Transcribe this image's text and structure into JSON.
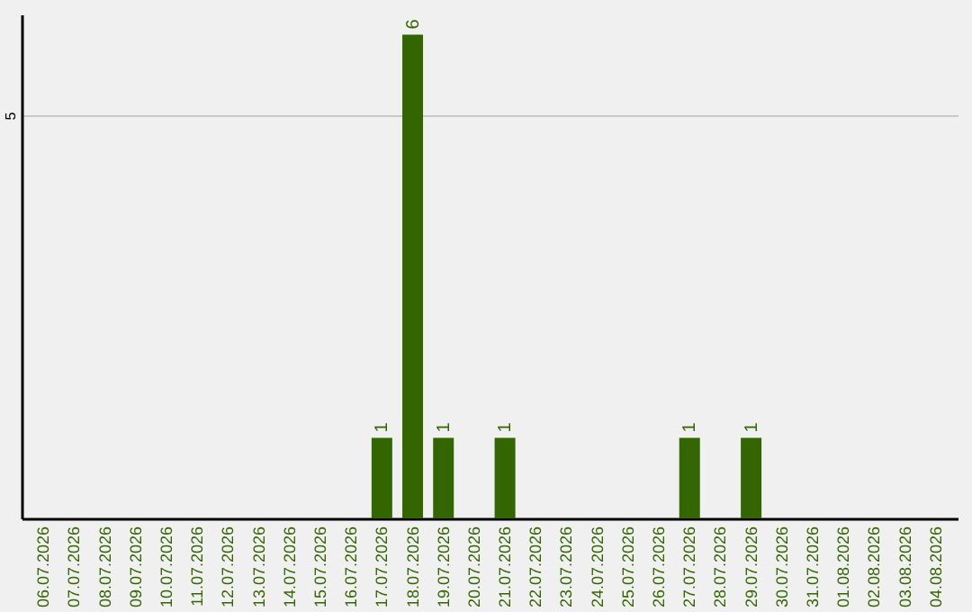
{
  "chart_data": {
    "type": "bar",
    "categories": [
      "06.07.2026",
      "07.07.2026",
      "08.07.2026",
      "09.07.2026",
      "10.07.2026",
      "11.07.2026",
      "12.07.2026",
      "13.07.2026",
      "14.07.2026",
      "15.07.2026",
      "16.07.2026",
      "17.07.2026",
      "18.07.2026",
      "19.07.2026",
      "20.07.2026",
      "21.07.2026",
      "22.07.2026",
      "23.07.2026",
      "24.07.2026",
      "25.07.2026",
      "26.07.2026",
      "27.07.2026",
      "28.07.2026",
      "29.07.2026",
      "30.07.2026",
      "31.07.2026",
      "01.08.2026",
      "02.08.2026",
      "03.08.2026",
      "04.08.2026"
    ],
    "values": [
      0,
      0,
      0,
      0,
      0,
      0,
      0,
      0,
      0,
      0,
      0,
      1,
      6,
      1,
      0,
      1,
      0,
      0,
      0,
      0,
      0,
      1,
      0,
      1,
      0,
      0,
      0,
      0,
      0,
      0
    ],
    "value_labels": [
      null,
      null,
      null,
      null,
      null,
      null,
      null,
      null,
      null,
      null,
      null,
      "1",
      "6",
      "1",
      null,
      "1",
      null,
      null,
      null,
      null,
      null,
      "1",
      null,
      "1",
      null,
      null,
      null,
      null,
      null,
      null
    ],
    "color": "#336600",
    "ylim": [
      0,
      6.25
    ],
    "yticks": [
      5
    ],
    "grid": "y"
  }
}
